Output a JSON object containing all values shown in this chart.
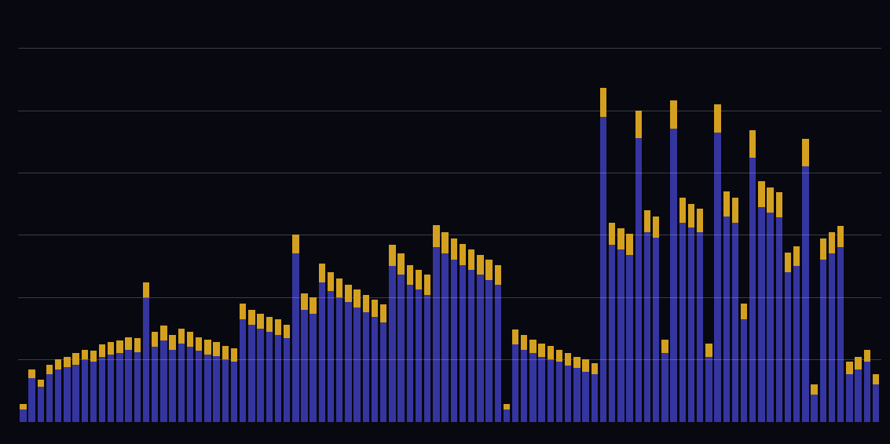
{
  "background_color": "#080810",
  "bar_color": "#3535a0",
  "ci_color": "#d4a020",
  "bar_width": 0.75,
  "ylim": [
    0,
    310
  ],
  "yticks": [
    50,
    100,
    150,
    200,
    250,
    300
  ],
  "grid_color": "#ffffff",
  "grid_alpha": 0.25,
  "grid_linewidth": 0.6,
  "bars": [
    {
      "val": 10,
      "ci": 14
    },
    {
      "val": 35,
      "ci": 42
    },
    {
      "val": 28,
      "ci": 34
    },
    {
      "val": 38,
      "ci": 46
    },
    {
      "val": 42,
      "ci": 50
    },
    {
      "val": 44,
      "ci": 52
    },
    {
      "val": 46,
      "ci": 55
    },
    {
      "val": 50,
      "ci": 58
    },
    {
      "val": 48,
      "ci": 57
    },
    {
      "val": 52,
      "ci": 62
    },
    {
      "val": 54,
      "ci": 64
    },
    {
      "val": 55,
      "ci": 65
    },
    {
      "val": 58,
      "ci": 68
    },
    {
      "val": 56,
      "ci": 67
    },
    {
      "val": 100,
      "ci": 112
    },
    {
      "val": 60,
      "ci": 72
    },
    {
      "val": 65,
      "ci": 77
    },
    {
      "val": 58,
      "ci": 70
    },
    {
      "val": 63,
      "ci": 75
    },
    {
      "val": 60,
      "ci": 72
    },
    {
      "val": 57,
      "ci": 68
    },
    {
      "val": 54,
      "ci": 66
    },
    {
      "val": 53,
      "ci": 64
    },
    {
      "val": 50,
      "ci": 61
    },
    {
      "val": 48,
      "ci": 59
    },
    {
      "val": 82,
      "ci": 95
    },
    {
      "val": 78,
      "ci": 90
    },
    {
      "val": 75,
      "ci": 87
    },
    {
      "val": 72,
      "ci": 84
    },
    {
      "val": 70,
      "ci": 82
    },
    {
      "val": 67,
      "ci": 78
    },
    {
      "val": 135,
      "ci": 150
    },
    {
      "val": 90,
      "ci": 103
    },
    {
      "val": 87,
      "ci": 100
    },
    {
      "val": 112,
      "ci": 127
    },
    {
      "val": 105,
      "ci": 120
    },
    {
      "val": 100,
      "ci": 115
    },
    {
      "val": 96,
      "ci": 110
    },
    {
      "val": 92,
      "ci": 106
    },
    {
      "val": 88,
      "ci": 102
    },
    {
      "val": 84,
      "ci": 98
    },
    {
      "val": 80,
      "ci": 94
    },
    {
      "val": 125,
      "ci": 142
    },
    {
      "val": 118,
      "ci": 135
    },
    {
      "val": 110,
      "ci": 126
    },
    {
      "val": 106,
      "ci": 122
    },
    {
      "val": 102,
      "ci": 118
    },
    {
      "val": 140,
      "ci": 158
    },
    {
      "val": 135,
      "ci": 152
    },
    {
      "val": 130,
      "ci": 147
    },
    {
      "val": 126,
      "ci": 143
    },
    {
      "val": 122,
      "ci": 138
    },
    {
      "val": 118,
      "ci": 134
    },
    {
      "val": 114,
      "ci": 130
    },
    {
      "val": 110,
      "ci": 126
    },
    {
      "val": 10,
      "ci": 14
    },
    {
      "val": 62,
      "ci": 74
    },
    {
      "val": 58,
      "ci": 70
    },
    {
      "val": 55,
      "ci": 66
    },
    {
      "val": 52,
      "ci": 63
    },
    {
      "val": 50,
      "ci": 61
    },
    {
      "val": 48,
      "ci": 58
    },
    {
      "val": 45,
      "ci": 55
    },
    {
      "val": 43,
      "ci": 52
    },
    {
      "val": 40,
      "ci": 50
    },
    {
      "val": 38,
      "ci": 47
    },
    {
      "val": 245,
      "ci": 268
    },
    {
      "val": 142,
      "ci": 160
    },
    {
      "val": 138,
      "ci": 155
    },
    {
      "val": 134,
      "ci": 151
    },
    {
      "val": 228,
      "ci": 250
    },
    {
      "val": 152,
      "ci": 170
    },
    {
      "val": 148,
      "ci": 165
    },
    {
      "val": 55,
      "ci": 66
    },
    {
      "val": 235,
      "ci": 258
    },
    {
      "val": 160,
      "ci": 180
    },
    {
      "val": 156,
      "ci": 175
    },
    {
      "val": 152,
      "ci": 171
    },
    {
      "val": 52,
      "ci": 63
    },
    {
      "val": 232,
      "ci": 255
    },
    {
      "val": 165,
      "ci": 185
    },
    {
      "val": 160,
      "ci": 180
    },
    {
      "val": 82,
      "ci": 95
    },
    {
      "val": 212,
      "ci": 234
    },
    {
      "val": 172,
      "ci": 193
    },
    {
      "val": 168,
      "ci": 188
    },
    {
      "val": 164,
      "ci": 184
    },
    {
      "val": 120,
      "ci": 136
    },
    {
      "val": 125,
      "ci": 141
    },
    {
      "val": 205,
      "ci": 227
    },
    {
      "val": 22,
      "ci": 30
    },
    {
      "val": 130,
      "ci": 147
    },
    {
      "val": 135,
      "ci": 152
    },
    {
      "val": 140,
      "ci": 157
    },
    {
      "val": 38,
      "ci": 48
    },
    {
      "val": 42,
      "ci": 52
    },
    {
      "val": 48,
      "ci": 58
    },
    {
      "val": 30,
      "ci": 38
    }
  ]
}
